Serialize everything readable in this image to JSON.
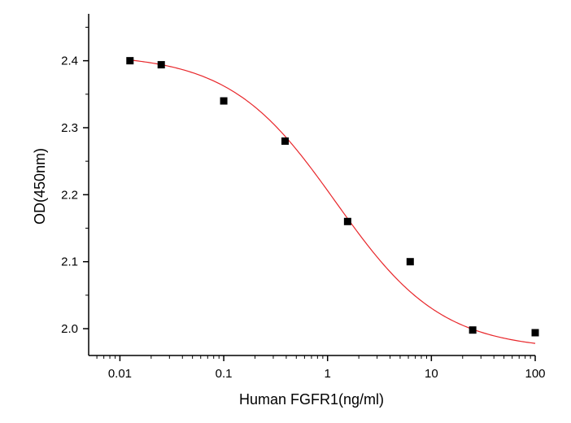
{
  "chart_data": {
    "type": "scatter",
    "title": "",
    "xlabel": "Human FGFR1(ng/ml)",
    "ylabel": "OD(450nm)",
    "x_scale": "log",
    "xlim": [
      0.005,
      100
    ],
    "ylim": [
      1.96,
      2.47
    ],
    "x_ticks": [
      0.01,
      0.1,
      1,
      10,
      100
    ],
    "x_tick_labels": [
      "0.01",
      "0.1",
      "1",
      "10",
      "100"
    ],
    "y_ticks": [
      2.0,
      2.1,
      2.2,
      2.3,
      2.4
    ],
    "y_tick_labels": [
      "2.0",
      "2.1",
      "2.2",
      "2.3",
      "2.4"
    ],
    "grid": false,
    "series": [
      {
        "marker": "square",
        "color": "#000000",
        "x": [
          0.0125,
          0.025,
          0.1,
          0.39,
          1.56,
          6.25,
          25,
          100
        ],
        "y": [
          2.4,
          2.394,
          2.34,
          2.28,
          2.16,
          2.1,
          1.998,
          1.994
        ]
      }
    ],
    "fit": {
      "type": "4PL",
      "color": "#e8262a",
      "top": 2.41,
      "bottom": 1.968,
      "ec50": 1.2,
      "hill": 0.85
    }
  }
}
